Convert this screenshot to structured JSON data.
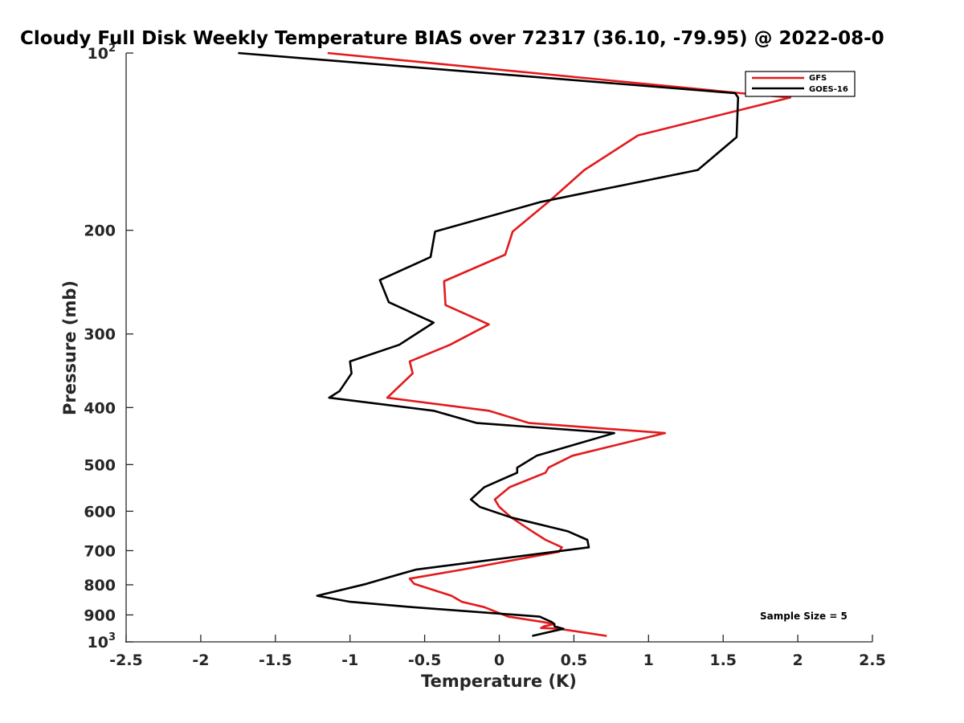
{
  "chart_data": {
    "type": "line",
    "title": "Cloudy Full Disk Weekly Temperature BIAS over 72317 (36.10, -79.95) @ 2022-08-0",
    "xlabel": "Temperature (K)",
    "ylabel": "Pressure (mb)",
    "xlim": [
      -2.5,
      2.5
    ],
    "ylim": [
      100,
      1000
    ],
    "yscale": "log",
    "y_reversed": true,
    "grid": false,
    "legend_position": "top-right",
    "x_ticks": [
      -2.5,
      -2,
      -1.5,
      -1,
      -0.5,
      0,
      0.5,
      1,
      1.5,
      2,
      2.5
    ],
    "x_tick_labels": [
      "-2.5",
      "-2",
      "-1.5",
      "-1",
      "-0.5",
      "0",
      "0.5",
      "1",
      "1.5",
      "2",
      "2.5"
    ],
    "y_ticks": [
      {
        "value": 100,
        "base": "10",
        "exp": "2"
      },
      {
        "value": 200,
        "label": "200"
      },
      {
        "value": 300,
        "label": "300"
      },
      {
        "value": 400,
        "label": "400"
      },
      {
        "value": 500,
        "label": "500"
      },
      {
        "value": 600,
        "label": "600"
      },
      {
        "value": 700,
        "label": "700"
      },
      {
        "value": 800,
        "label": "800"
      },
      {
        "value": 900,
        "label": "900"
      },
      {
        "value": 1000,
        "base": "10",
        "exp": "3"
      }
    ],
    "series": [
      {
        "name": "GFS",
        "color": "#e31a1c",
        "points": [
          [
            -1.15,
            100
          ],
          [
            1.62,
            117
          ],
          [
            1.95,
            119
          ],
          [
            0.93,
            138
          ],
          [
            0.57,
            158
          ],
          [
            0.34,
            178
          ],
          [
            0.09,
            201
          ],
          [
            0.04,
            220
          ],
          [
            -0.37,
            244
          ],
          [
            -0.36,
            268
          ],
          [
            -0.07,
            289
          ],
          [
            -0.33,
            313
          ],
          [
            -0.6,
            334
          ],
          [
            -0.58,
            350
          ],
          [
            -0.75,
            385
          ],
          [
            -0.07,
            405
          ],
          [
            0.2,
            425
          ],
          [
            1.11,
            442
          ],
          [
            0.49,
            483
          ],
          [
            0.33,
            506
          ],
          [
            0.31,
            516
          ],
          [
            0.07,
            546
          ],
          [
            -0.03,
            573
          ],
          [
            0.0,
            590
          ],
          [
            0.08,
            615
          ],
          [
            0.22,
            649
          ],
          [
            0.31,
            671
          ],
          [
            0.42,
            691
          ],
          [
            0.4,
            703
          ],
          [
            -0.25,
            754
          ],
          [
            -0.6,
            781
          ],
          [
            -0.57,
            797
          ],
          [
            -0.32,
            835
          ],
          [
            -0.25,
            855
          ],
          [
            -0.1,
            873
          ],
          [
            0.06,
            906
          ],
          [
            0.29,
            925
          ],
          [
            0.37,
            933
          ],
          [
            0.3,
            941
          ],
          [
            0.28,
            947
          ],
          [
            0.4,
            950
          ],
          [
            0.72,
            977
          ]
        ]
      },
      {
        "name": "GOES-16",
        "color": "#000000",
        "points": [
          [
            -1.75,
            100
          ],
          [
            1.58,
            117
          ],
          [
            1.6,
            119
          ],
          [
            1.59,
            139
          ],
          [
            1.33,
            158
          ],
          [
            0.28,
            179
          ],
          [
            -0.43,
            201
          ],
          [
            -0.46,
            222
          ],
          [
            -0.8,
            243
          ],
          [
            -0.74,
            265
          ],
          [
            -0.44,
            287
          ],
          [
            -0.67,
            313
          ],
          [
            -1.0,
            334
          ],
          [
            -0.99,
            350
          ],
          [
            -1.07,
            375
          ],
          [
            -1.14,
            385
          ],
          [
            -0.44,
            405
          ],
          [
            -0.15,
            425
          ],
          [
            0.77,
            442
          ],
          [
            0.25,
            483
          ],
          [
            0.12,
            506
          ],
          [
            0.12,
            516
          ],
          [
            -0.1,
            546
          ],
          [
            -0.19,
            573
          ],
          [
            -0.13,
            590
          ],
          [
            0.08,
            615
          ],
          [
            0.46,
            649
          ],
          [
            0.59,
            671
          ],
          [
            0.6,
            691
          ],
          [
            -0.56,
            754
          ],
          [
            -0.77,
            781
          ],
          [
            -0.89,
            797
          ],
          [
            -1.22,
            835
          ],
          [
            -1.0,
            855
          ],
          [
            -0.58,
            873
          ],
          [
            0.27,
            906
          ],
          [
            0.35,
            925
          ],
          [
            0.37,
            933
          ],
          [
            0.37,
            941
          ],
          [
            0.43,
            950
          ],
          [
            0.22,
            977
          ]
        ]
      }
    ],
    "annotation": "Sample Size = 5"
  }
}
